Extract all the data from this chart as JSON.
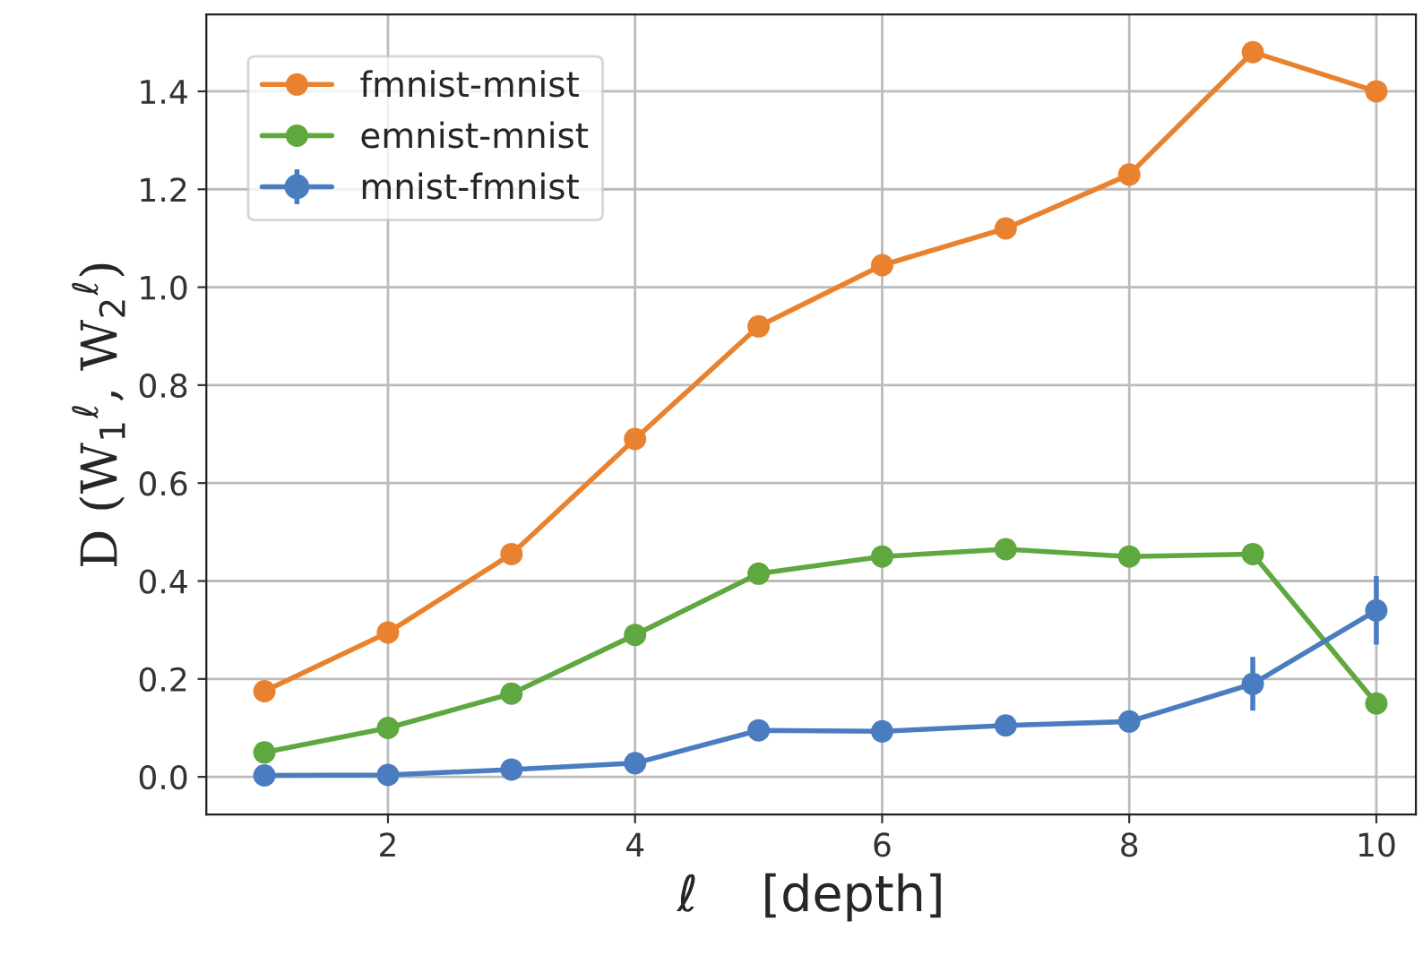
{
  "chart_data": {
    "type": "line",
    "xlabel": "ℓ    [depth]",
    "ylabel": "D (W$_{1}$$^{ℓ}$, W$_{2}$$^{ℓ}$)",
    "x": [
      1,
      2,
      3,
      4,
      5,
      6,
      7,
      8,
      9,
      10
    ],
    "series": [
      {
        "name": "fmnist-mnist",
        "color": "#e8822e",
        "values": [
          0.175,
          0.295,
          0.455,
          0.69,
          0.92,
          1.045,
          1.12,
          1.23,
          1.48,
          1.4
        ]
      },
      {
        "name": "emnist-mnist",
        "color": "#5ea83f",
        "values": [
          0.05,
          0.1,
          0.17,
          0.29,
          0.415,
          0.45,
          0.465,
          0.45,
          0.455,
          0.15
        ]
      },
      {
        "name": "mnist-fmnist",
        "color": "#4a7dc0",
        "values": [
          0.003,
          0.004,
          0.015,
          0.028,
          0.095,
          0.093,
          0.105,
          0.113,
          0.19,
          0.34
        ],
        "errors": [
          null,
          null,
          null,
          null,
          null,
          null,
          null,
          null,
          0.055,
          0.07
        ]
      }
    ],
    "xlim": [
      0.53,
      10.32
    ],
    "ylim": [
      -0.077,
      1.557
    ],
    "xticks": [
      2,
      4,
      6,
      8,
      10
    ],
    "yticks": [
      {
        "value": 0,
        "label": "0.0"
      },
      0.2,
      0.4,
      0.6,
      0.8,
      {
        "value": 1,
        "label": "1.0"
      },
      1.2,
      1.4
    ],
    "grid": true,
    "legend": "top left",
    "marker": "circle",
    "line_style": "solid"
  }
}
